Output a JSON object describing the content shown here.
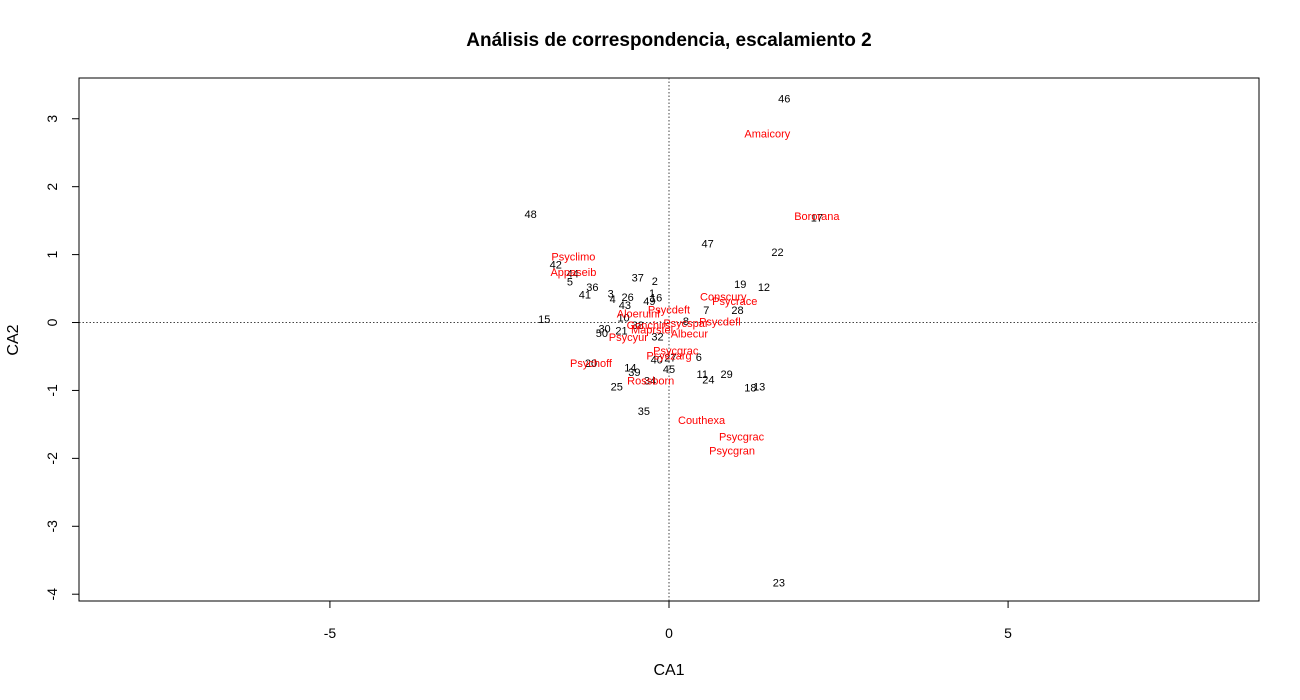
{
  "chart_data": {
    "type": "scatter",
    "title": "Análisis de correspondencia, escalamiento 2",
    "xlabel": "CA1",
    "ylabel": "CA2",
    "xlim": [
      -8.7,
      8.7
    ],
    "ylim": [
      -4.1,
      3.6
    ],
    "xticks": [
      -5,
      0,
      5
    ],
    "yticks": [
      -4,
      -3,
      -2,
      -1,
      0,
      1,
      2,
      3
    ],
    "reference_lines": {
      "x": 0,
      "y": 0,
      "style": "dotted"
    },
    "colors": {
      "sites": "#000000",
      "species": "#ff0000"
    },
    "series": [
      {
        "points": [
          {
            "label": "46",
            "x": 1.7,
            "y": 3.28
          },
          {
            "label": "48",
            "x": -2.04,
            "y": 1.58
          },
          {
            "label": "17",
            "x": 2.18,
            "y": 1.53
          },
          {
            "label": "47",
            "x": 0.57,
            "y": 1.15
          },
          {
            "label": "22",
            "x": 1.6,
            "y": 1.02
          },
          {
            "label": "42",
            "x": -1.67,
            "y": 0.84
          },
          {
            "label": "44",
            "x": -1.42,
            "y": 0.71
          },
          {
            "label": "37",
            "x": -0.46,
            "y": 0.65
          },
          {
            "label": "5",
            "x": -1.46,
            "y": 0.59
          },
          {
            "label": "2",
            "x": -0.21,
            "y": 0.6
          },
          {
            "label": "19",
            "x": 1.05,
            "y": 0.55
          },
          {
            "label": "36",
            "x": -1.13,
            "y": 0.51
          },
          {
            "label": "12",
            "x": 1.4,
            "y": 0.51
          },
          {
            "label": "41",
            "x": -1.24,
            "y": 0.4
          },
          {
            "label": "3",
            "x": -0.86,
            "y": 0.41
          },
          {
            "label": "1",
            "x": -0.25,
            "y": 0.42
          },
          {
            "label": "26",
            "x": -0.61,
            "y": 0.36
          },
          {
            "label": "16",
            "x": -0.19,
            "y": 0.35
          },
          {
            "label": "4",
            "x": -0.83,
            "y": 0.33
          },
          {
            "label": "49",
            "x": -0.29,
            "y": 0.3
          },
          {
            "label": "43",
            "x": -0.65,
            "y": 0.24
          },
          {
            "label": "7",
            "x": 0.55,
            "y": 0.17
          },
          {
            "label": "28",
            "x": 1.01,
            "y": 0.17
          },
          {
            "label": "15",
            "x": -1.84,
            "y": 0.04
          },
          {
            "label": "10",
            "x": -0.67,
            "y": 0.06
          },
          {
            "label": "30",
            "x": -0.95,
            "y": -0.1
          },
          {
            "label": "21",
            "x": -0.7,
            "y": -0.13
          },
          {
            "label": "38",
            "x": -0.46,
            "y": -0.05
          },
          {
            "label": "50",
            "x": -0.99,
            "y": -0.17
          },
          {
            "label": "8",
            "x": 0.25,
            "y": 0.01
          },
          {
            "label": "32",
            "x": -0.17,
            "y": -0.22
          },
          {
            "label": "6",
            "x": 0.44,
            "y": -0.52
          },
          {
            "label": "40",
            "x": -0.18,
            "y": -0.56
          },
          {
            "label": "27",
            "x": 0.02,
            "y": -0.53
          },
          {
            "label": "14",
            "x": -0.57,
            "y": -0.68
          },
          {
            "label": "39",
            "x": -0.51,
            "y": -0.74
          },
          {
            "label": "45",
            "x": 0.0,
            "y": -0.7
          },
          {
            "label": "11",
            "x": 0.49,
            "y": -0.77
          },
          {
            "label": "29",
            "x": 0.85,
            "y": -0.77
          },
          {
            "label": "24",
            "x": 0.58,
            "y": -0.85
          },
          {
            "label": "34",
            "x": -0.28,
            "y": -0.87
          },
          {
            "label": "25",
            "x": -0.77,
            "y": -0.96
          },
          {
            "label": "18",
            "x": 1.2,
            "y": -0.97
          },
          {
            "label": "13",
            "x": 1.33,
            "y": -0.96
          },
          {
            "label": "20",
            "x": -1.15,
            "y": -0.61
          },
          {
            "label": "35",
            "x": -0.37,
            "y": -1.32
          },
          {
            "label": "23",
            "x": 1.62,
            "y": -3.84
          }
        ]
      },
      {
        "points": [
          {
            "label": "Amaicory",
            "x": 1.45,
            "y": 2.77
          },
          {
            "label": "Bororana",
            "x": 2.18,
            "y": 1.55
          },
          {
            "label": "Psyclimo",
            "x": -1.41,
            "y": 0.96
          },
          {
            "label": "Appaseib",
            "x": -1.41,
            "y": 0.73
          },
          {
            "label": "Conscury",
            "x": 0.8,
            "y": 0.37
          },
          {
            "label": "Psycrace",
            "x": 0.97,
            "y": 0.3
          },
          {
            "label": "Psycdeft",
            "x": 0.0,
            "y": 0.18
          },
          {
            "label": "Aloeruinf",
            "x": -0.45,
            "y": 0.12
          },
          {
            "label": "Psycdefl",
            "x": 0.75,
            "y": 0.0
          },
          {
            "label": "Psycspar",
            "x": 0.25,
            "y": -0.02
          },
          {
            "label": "Gonchirs",
            "x": -0.3,
            "y": -0.05
          },
          {
            "label": "Maprstel",
            "x": -0.25,
            "y": -0.12
          },
          {
            "label": "Psycyur",
            "x": -0.6,
            "y": -0.23
          },
          {
            "label": "Albecur",
            "x": 0.3,
            "y": -0.18
          },
          {
            "label": "Psycgrac",
            "x": 0.1,
            "y": -0.43
          },
          {
            "label": "Psyczarg",
            "x": 0.0,
            "y": -0.5
          },
          {
            "label": "Psychoff",
            "x": -1.15,
            "y": -0.61
          },
          {
            "label": "Rossborn",
            "x": -0.27,
            "y": -0.87
          },
          {
            "label": "Couthexa",
            "x": 0.48,
            "y": -1.45
          },
          {
            "label": "Psycgrac",
            "x": 1.07,
            "y": -1.69
          },
          {
            "label": "Psycgran",
            "x": 0.93,
            "y": -1.9
          }
        ]
      }
    ]
  }
}
